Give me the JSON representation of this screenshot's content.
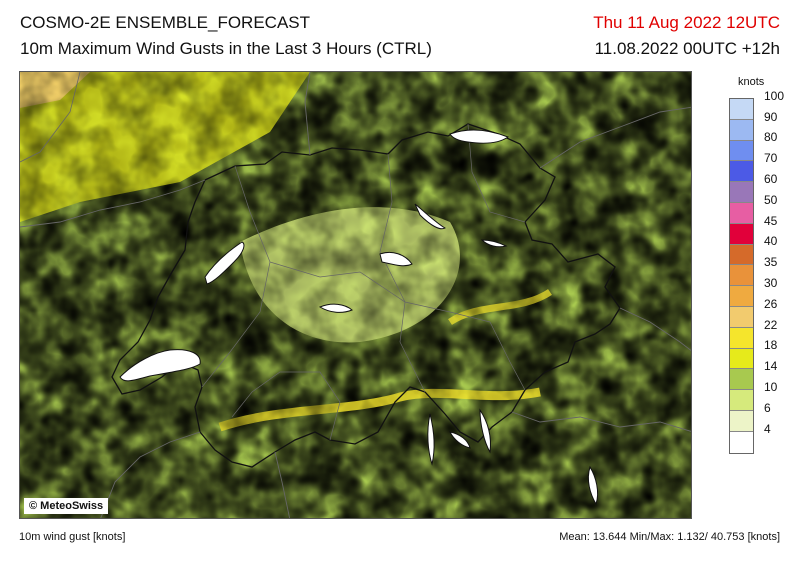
{
  "header": {
    "title_line1": "COSMO-2E ENSEMBLE_FORECAST",
    "title_line2": "10m Maximum Wind Gusts in the Last 3 Hours (CTRL)",
    "valid_time": "Thu 11 Aug 2022 12UTC",
    "run_info": "11.08.2022 00UTC +12h"
  },
  "map": {
    "credit": "© MeteoSwiss",
    "colors": {
      "lake": "#ffffff",
      "border": "#111111",
      "canton": "#666666"
    }
  },
  "legend": {
    "unit": "knots",
    "colors": [
      "#c5d9f5",
      "#9cb9f2",
      "#6f8ef0",
      "#4c5ae6",
      "#9977b8",
      "#e75ea3",
      "#e1003a",
      "#d56a2a",
      "#e9923a",
      "#efaa40",
      "#f2cb6e",
      "#f5e52c",
      "#e6ea1b",
      "#a8c94f",
      "#d6ea7c",
      "#edf4c8",
      "#ffffff"
    ],
    "labels": [
      "100",
      "90",
      "80",
      "70",
      "60",
      "50",
      "45",
      "40",
      "35",
      "30",
      "26",
      "22",
      "18",
      "14",
      "10",
      "6",
      "4"
    ]
  },
  "footer": {
    "left": "10m wind gust [knots]",
    "right": "Mean: 13.644 Min/Max:  1.132/ 40.753 [knots]"
  }
}
